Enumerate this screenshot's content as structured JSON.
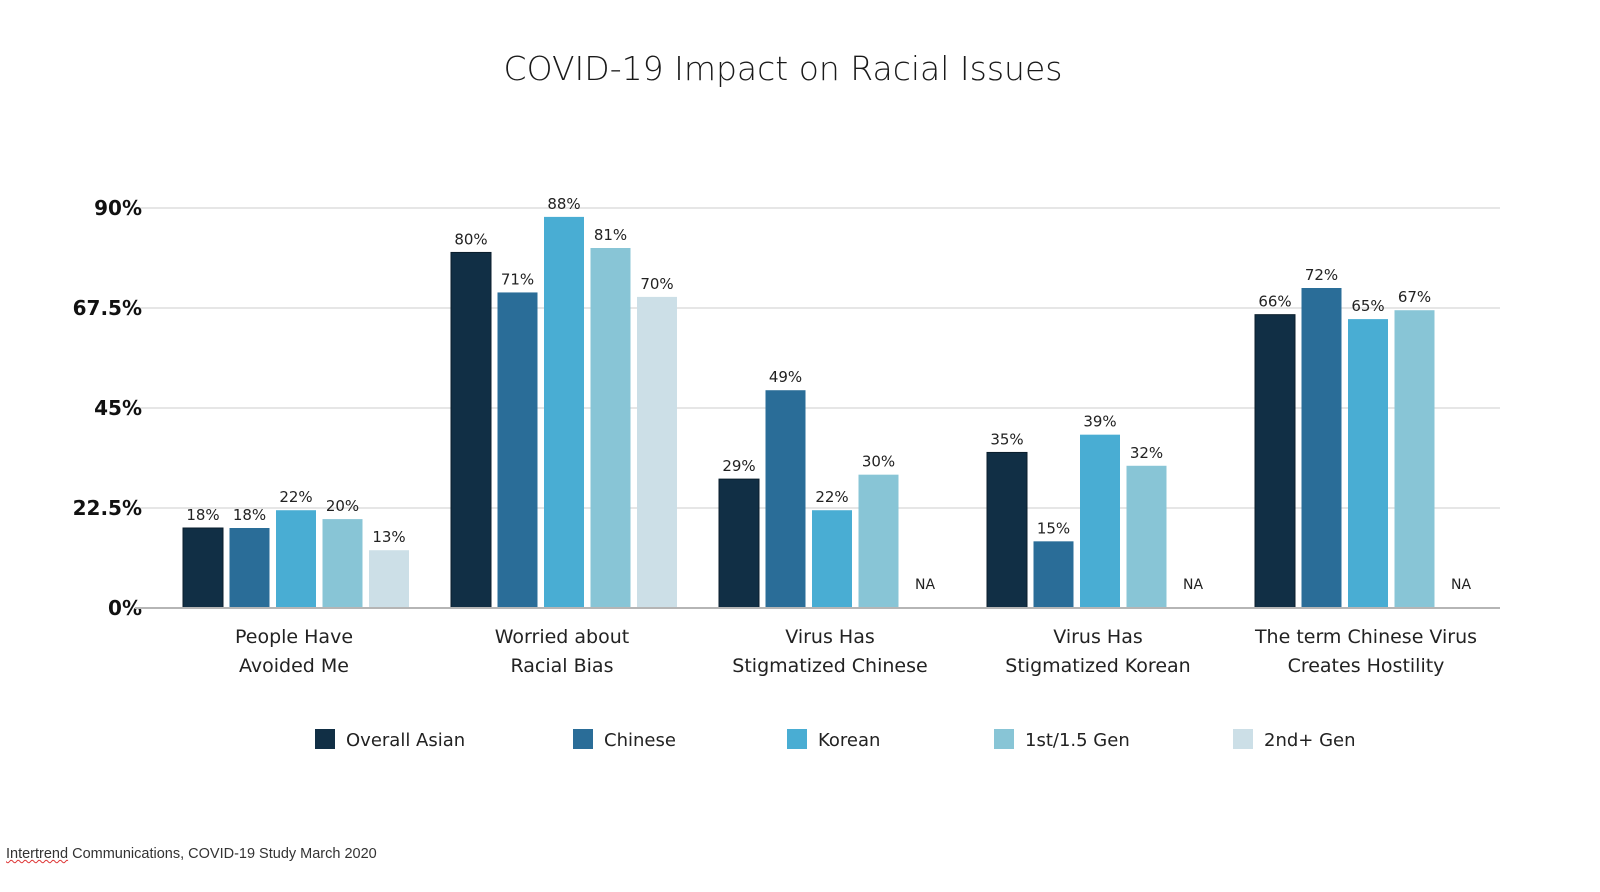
{
  "chart_data": {
    "type": "bar",
    "title": "COVID-19 Impact on Racial Issues",
    "xlabel": "",
    "ylabel": "",
    "ylim": [
      0,
      90
    ],
    "yticks": [
      0,
      22.5,
      45,
      67.5,
      90
    ],
    "ytick_labels": [
      "0%",
      "22.5%",
      "45%",
      "67.5%",
      "90%"
    ],
    "grid": true,
    "legend_position": "bottom",
    "categories": [
      [
        "People Have",
        "Avoided Me"
      ],
      [
        "Worried about",
        "Racial Bias"
      ],
      [
        "Virus Has",
        "Stigmatized Chinese"
      ],
      [
        "Virus Has",
        "Stigmatized Korean"
      ],
      [
        "The term Chinese Virus",
        "Creates Hostility"
      ]
    ],
    "series": [
      {
        "name": "Overall Asian",
        "color": "#112f45",
        "values": [
          18,
          80,
          29,
          35,
          66
        ]
      },
      {
        "name": "Chinese",
        "color": "#2a6d98",
        "values": [
          18,
          71,
          49,
          15,
          72
        ]
      },
      {
        "name": "Korean",
        "color": "#49add3",
        "values": [
          22,
          88,
          22,
          39,
          65
        ]
      },
      {
        "name": "1st/1.5 Gen",
        "color": "#88c5d6",
        "values": [
          20,
          81,
          30,
          32,
          67
        ]
      },
      {
        "name": "2nd+ Gen",
        "color": "#ccdfe7",
        "values": [
          13,
          70,
          null,
          null,
          null
        ]
      }
    ],
    "missing_label": "NA",
    "value_suffix": "%"
  },
  "source": {
    "spellflag_word": "Intertrend",
    "rest": " Communications, COVID-19 Study March 2020"
  }
}
